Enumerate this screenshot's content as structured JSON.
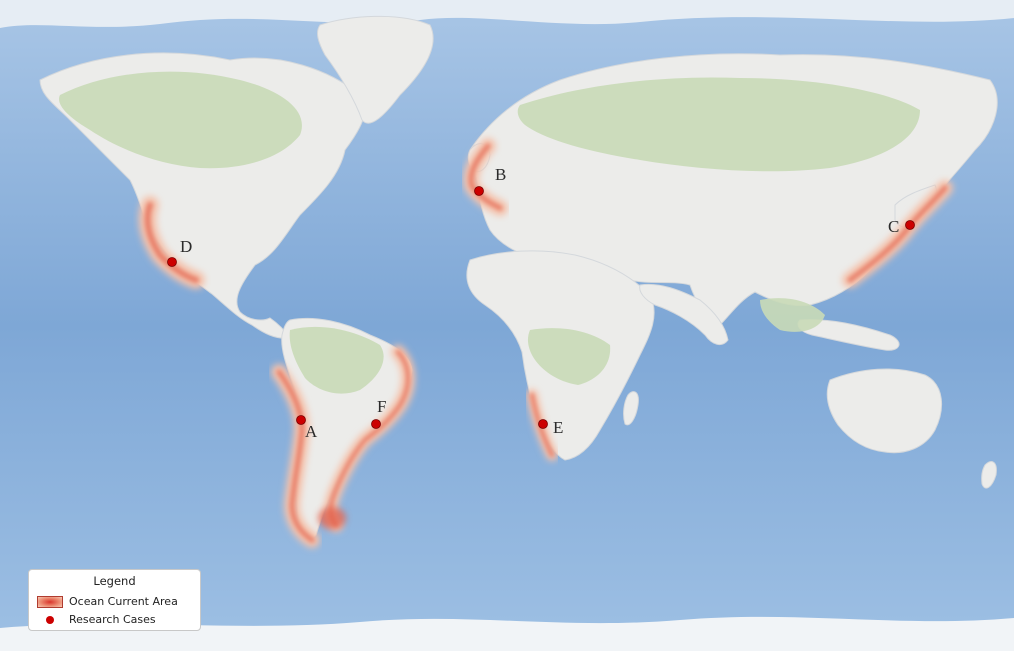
{
  "map": {
    "markers": [
      {
        "id": "A",
        "label": "A"
      },
      {
        "id": "B",
        "label": "B"
      },
      {
        "id": "C",
        "label": "C"
      },
      {
        "id": "D",
        "label": "D"
      },
      {
        "id": "E",
        "label": "E"
      },
      {
        "id": "F",
        "label": "F"
      }
    ]
  },
  "legend": {
    "title": "Legend",
    "items": [
      {
        "label": "Ocean Current Area",
        "symbol": "red-gradient-band"
      },
      {
        "label": "Research Cases",
        "symbol": "red-dot"
      }
    ]
  },
  "colors": {
    "ocean": "#7fa8d6",
    "land": "#ececea",
    "vegetation": "#c8d9b6",
    "current_area": "#e46a55",
    "research_case": "#cc0000"
  }
}
